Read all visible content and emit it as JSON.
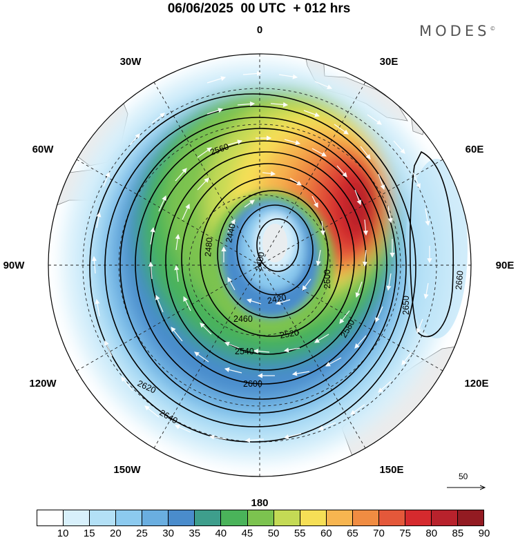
{
  "title": "06/06/2025  00 UTC  + 012 hrs",
  "brand": "MODES",
  "brand_mark": "©",
  "longitude_labels": [
    "0",
    "30E",
    "60E",
    "90E",
    "120E",
    "150E",
    "180",
    "150W",
    "120W",
    "90W",
    "60W",
    "30W"
  ],
  "contour_labels": [
    "2400",
    "2420",
    "2440",
    "2460",
    "2480",
    "2500",
    "2520",
    "2540",
    "2560",
    "2580",
    "2600",
    "2620",
    "2640",
    "2650",
    "2660"
  ],
  "reference_vector": "50",
  "colorbar": {
    "ticks": [
      "10",
      "15",
      "20",
      "25",
      "30",
      "35",
      "40",
      "45",
      "50",
      "55",
      "60",
      "65",
      "70",
      "75",
      "80",
      "85",
      "90"
    ],
    "colors": [
      "#ffffff",
      "#d8f0fb",
      "#b3e0f6",
      "#8ccaef",
      "#6aaee0",
      "#4a8ccc",
      "#3e9e8c",
      "#4ab35a",
      "#7cc34f",
      "#c4da55",
      "#f6df56",
      "#f7b550",
      "#f08c42",
      "#e4583a",
      "#d52a2e",
      "#b8222c",
      "#931b22"
    ]
  },
  "colors": {
    "land": "#ececec",
    "coast": "#555555",
    "contour": "#000000",
    "vector": "#ffffff"
  }
}
